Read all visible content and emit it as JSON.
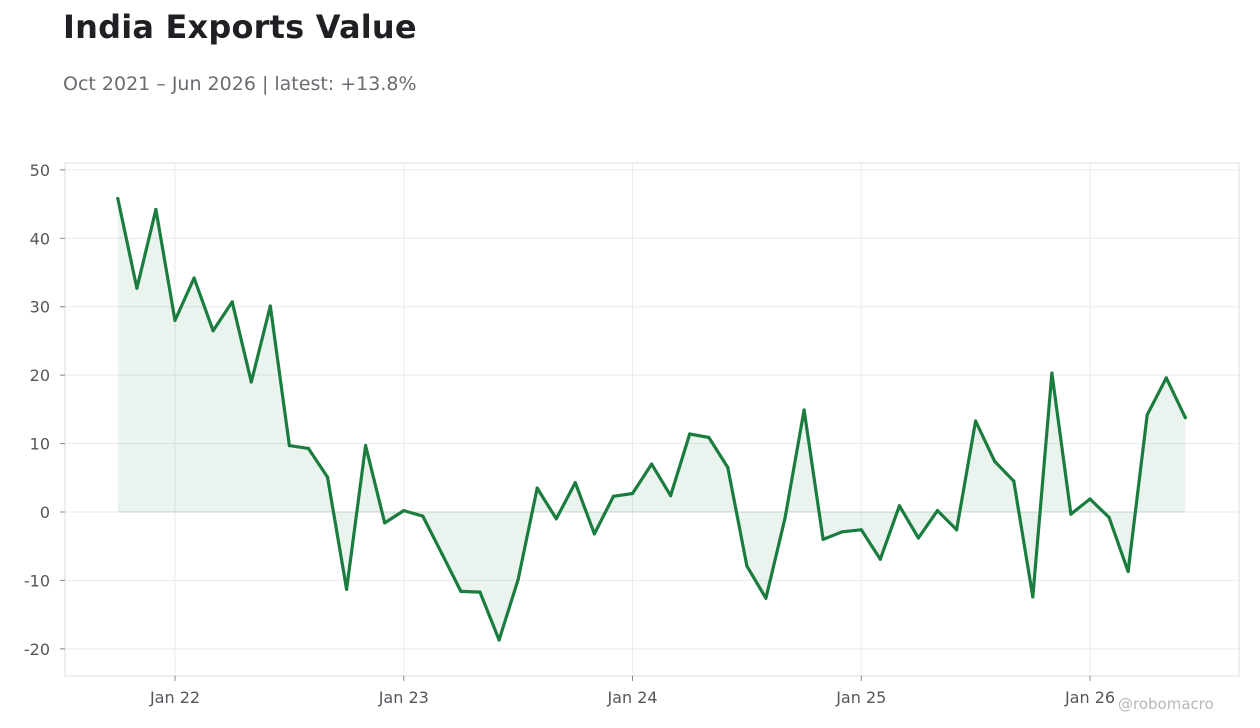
{
  "header": {
    "title": "India Exports Value",
    "subtitle": "Oct 2021 – Jun 2026 | latest: +13.8%"
  },
  "watermark": "@robomacro",
  "colors": {
    "line": "#1a7d3f",
    "fill": "#1a7d3f",
    "grid": "#ebebeb",
    "frame": "#dcdcdc"
  },
  "chart_data": {
    "type": "area",
    "title": "India Exports Value",
    "subtitle": "Oct 2021 – Jun 2026 | latest: +13.8%",
    "xlabel": "",
    "ylabel": "",
    "grid": true,
    "ylim": [
      -24,
      51
    ],
    "yticks": [
      50,
      40,
      30,
      20,
      10,
      0,
      -10,
      -20
    ],
    "xticks": [
      {
        "label": "Jan 22",
        "date": "2022-01"
      },
      {
        "label": "Jan 23",
        "date": "2023-01"
      },
      {
        "label": "Jan 24",
        "date": "2024-01"
      },
      {
        "label": "Jan 25",
        "date": "2025-01"
      },
      {
        "label": "Jan 26",
        "date": "2026-01"
      }
    ],
    "series": [
      {
        "x": [
          "2021-10",
          "2021-11",
          "2021-12",
          "2022-01",
          "2022-02",
          "2022-03",
          "2022-04",
          "2022-05",
          "2022-06",
          "2022-07",
          "2022-08",
          "2022-09",
          "2022-10",
          "2022-11",
          "2022-12",
          "2023-01",
          "2023-02",
          "2023-03",
          "2023-04",
          "2023-05",
          "2023-06",
          "2023-07",
          "2023-08",
          "2023-09",
          "2023-10",
          "2023-11",
          "2023-12",
          "2024-01",
          "2024-02",
          "2024-03",
          "2024-04",
          "2024-05",
          "2024-06",
          "2024-07",
          "2024-08",
          "2024-09",
          "2024-10",
          "2024-11",
          "2024-12",
          "2025-01",
          "2025-02",
          "2025-03",
          "2025-04",
          "2025-05",
          "2025-06",
          "2025-07",
          "2025-08",
          "2025-09",
          "2025-10",
          "2025-11",
          "2025-12",
          "2026-01",
          "2026-02",
          "2026-03",
          "2026-04",
          "2026-05",
          "2026-06"
        ],
        "values": [
          45.8,
          32.7,
          44.2,
          28.0,
          34.2,
          26.5,
          30.7,
          19.0,
          30.1,
          9.7,
          9.3,
          5.1,
          -11.3,
          9.7,
          -1.6,
          0.2,
          -0.6,
          -6.1,
          -11.6,
          -11.7,
          -18.7,
          -9.9,
          3.5,
          -1.0,
          4.3,
          -3.2,
          2.3,
          2.7,
          7.0,
          2.4,
          11.4,
          10.9,
          6.5,
          -7.9,
          -12.6,
          -0.9,
          14.9,
          -4.0,
          -2.9,
          -2.6,
          -6.9,
          0.9,
          -3.8,
          0.2,
          -2.6,
          13.3,
          7.4,
          4.5,
          -12.4,
          20.3,
          -0.3,
          1.9,
          -0.8,
          -8.7,
          14.2,
          19.6,
          13.8
        ]
      }
    ]
  }
}
